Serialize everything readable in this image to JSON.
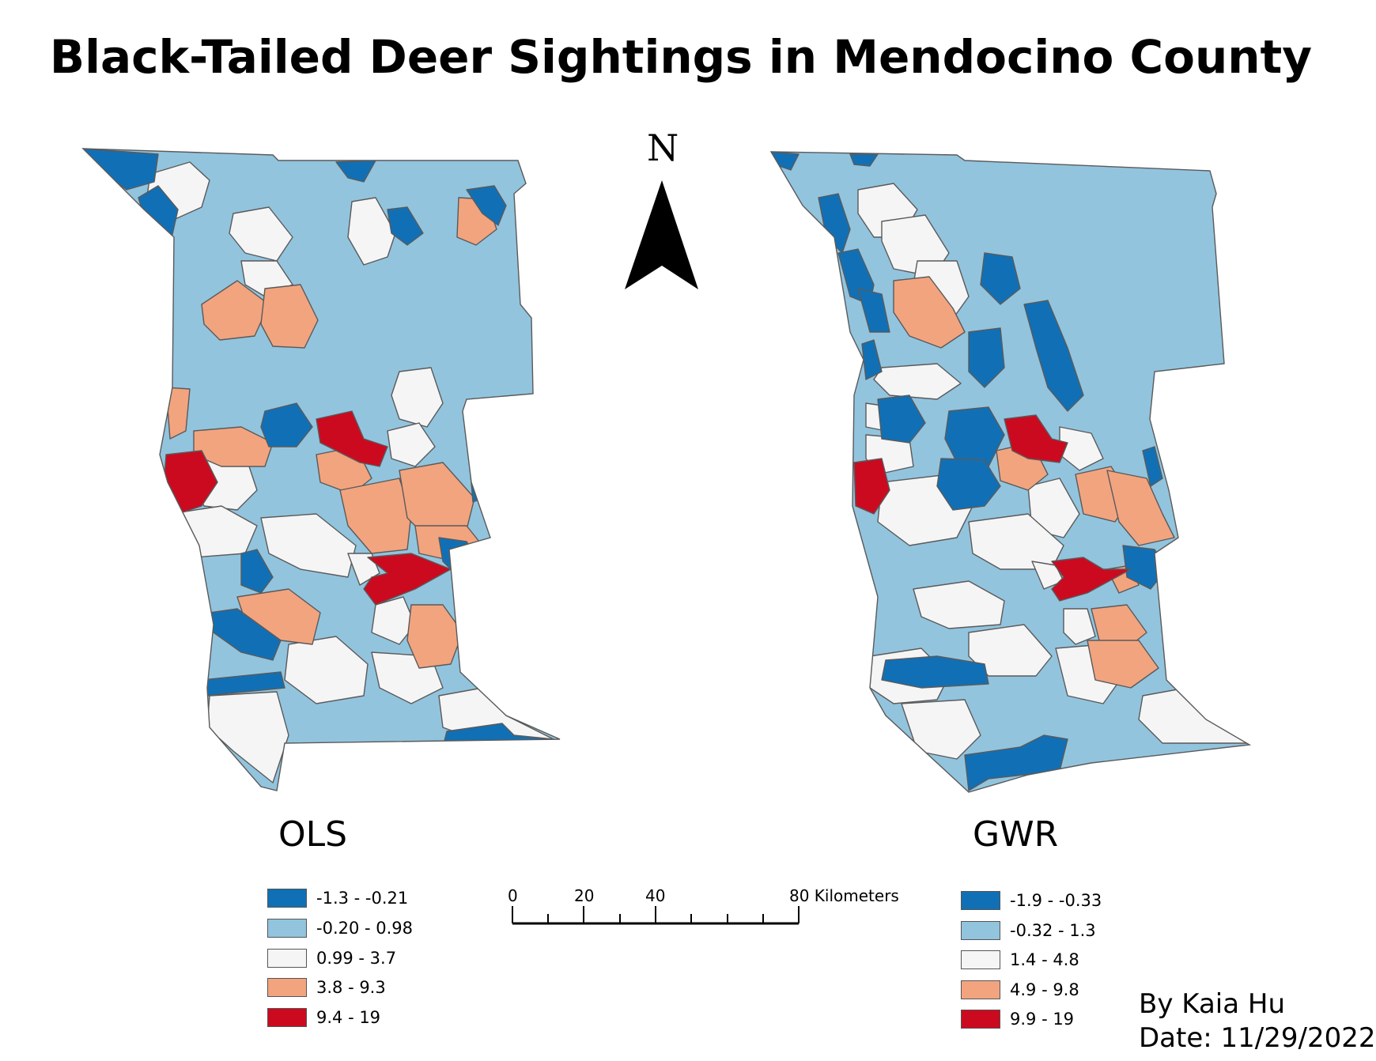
{
  "title": "Black-Tailed Deer Sightings in Mendocino County",
  "north_arrow": {
    "letter": "N"
  },
  "maps": [
    {
      "id": "ols",
      "label": "OLS",
      "legend": [
        {
          "range": "-1.3 - -0.21",
          "color": "#1170b5"
        },
        {
          "range": "-0.20 - 0.98",
          "color": "#92c4de"
        },
        {
          "range": "0.99 - 3.7",
          "color": "#f5f5f5"
        },
        {
          "range": "3.8 - 9.3",
          "color": "#f2a47f"
        },
        {
          "range": "9.4 - 19",
          "color": "#cb0a20"
        }
      ]
    },
    {
      "id": "gwr",
      "label": "GWR",
      "legend": [
        {
          "range": "-1.9 - -0.33",
          "color": "#1170b5"
        },
        {
          "range": "-0.32 - 1.3",
          "color": "#92c4de"
        },
        {
          "range": "1.4 - 4.8",
          "color": "#f5f5f5"
        },
        {
          "range": "4.9 - 9.8",
          "color": "#f2a47f"
        },
        {
          "range": "9.9 - 19",
          "color": "#cb0a20"
        }
      ]
    }
  ],
  "scale_bar": {
    "labels": [
      "0",
      "20",
      "40",
      "80 Kilometers"
    ]
  },
  "credit": {
    "author": "By Kaia Hu",
    "date": "Date: 11/29/2022"
  }
}
